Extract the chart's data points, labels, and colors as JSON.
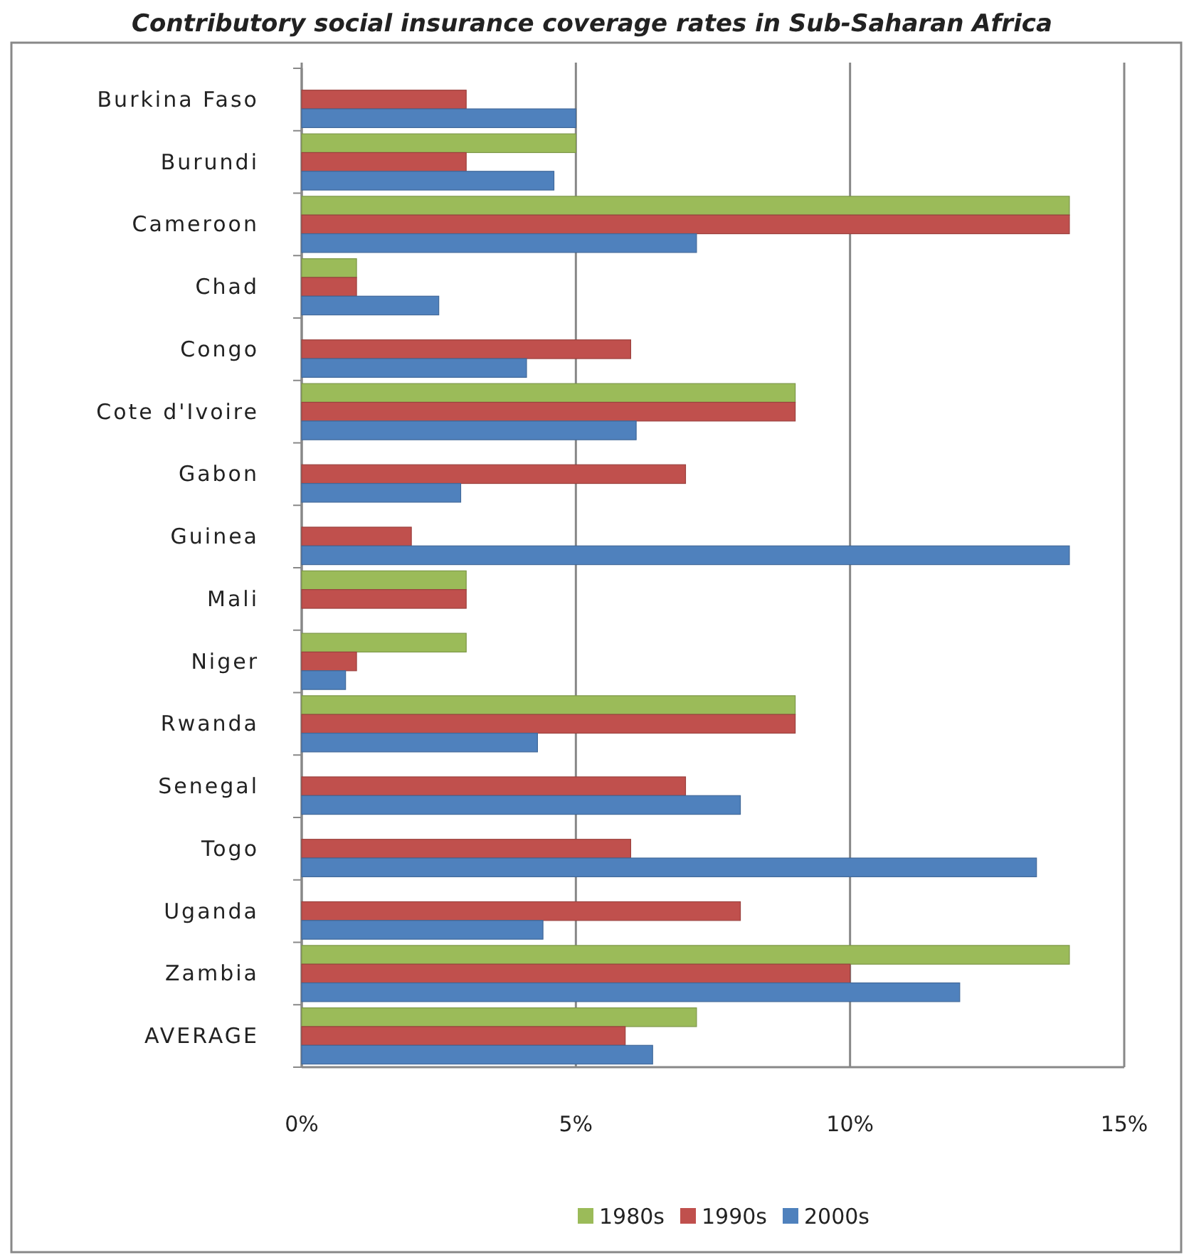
{
  "chart_data": {
    "type": "bar",
    "orientation": "horizontal",
    "title": "Contributory social insurance coverage rates in Sub-Saharan Africa",
    "categories": [
      "Burkina Faso",
      "Burundi",
      "Cameroon",
      "Chad",
      "Congo",
      "Cote d'Ivoire",
      "Gabon",
      "Guinea",
      "Mali",
      "Niger",
      "Rwanda",
      "Senegal",
      "Togo",
      "Uganda",
      "Zambia",
      "AVERAGE"
    ],
    "series": [
      {
        "name": "1980s",
        "color": "#9bbb59",
        "values": [
          null,
          5,
          14,
          1,
          null,
          9,
          null,
          null,
          3,
          3,
          9,
          null,
          null,
          null,
          14,
          7.2
        ]
      },
      {
        "name": "1990s",
        "color": "#c0504d",
        "values": [
          3,
          3,
          14,
          1,
          6,
          9,
          7,
          2,
          3,
          1,
          9,
          7,
          6,
          8,
          10,
          5.9
        ]
      },
      {
        "name": "2000s",
        "color": "#4f81bd",
        "values": [
          5,
          4.6,
          7.2,
          2.5,
          4.1,
          6.1,
          2.9,
          14,
          null,
          0.8,
          4.3,
          8,
          13.4,
          4.4,
          12,
          6.4
        ]
      }
    ],
    "xlim": [
      0,
      15
    ],
    "xticks": [
      {
        "value": 0,
        "label": "0%"
      },
      {
        "value": 5,
        "label": "5%"
      },
      {
        "value": 10,
        "label": "10%"
      },
      {
        "value": 15,
        "label": "15%"
      }
    ],
    "grid": "x",
    "legend": "bottom"
  }
}
